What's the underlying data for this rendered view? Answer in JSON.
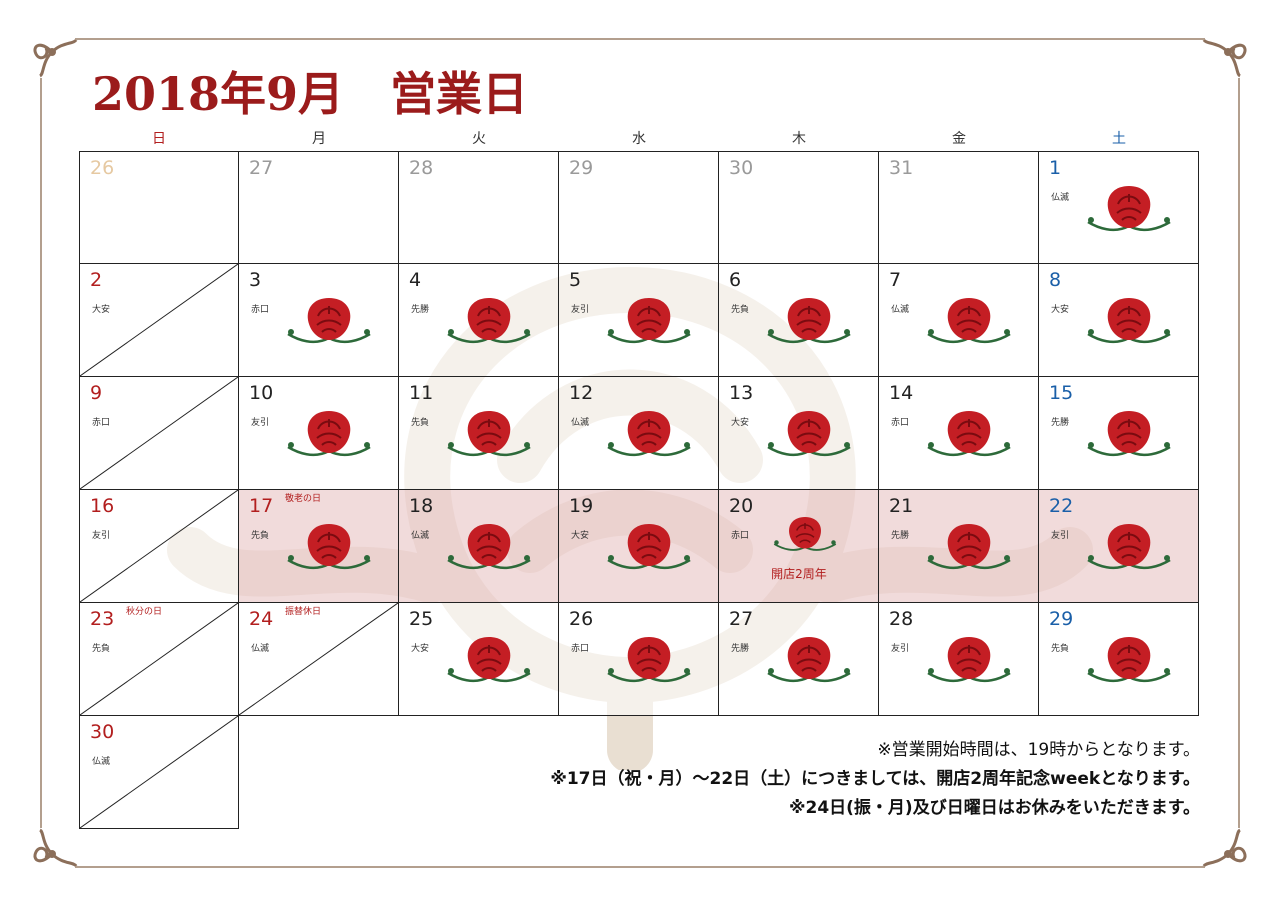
{
  "title": "2018年9月　営業日",
  "weekdays": [
    {
      "label": "日",
      "color": "#b21e1e"
    },
    {
      "label": "月",
      "color": "#333333"
    },
    {
      "label": "火",
      "color": "#333333"
    },
    {
      "label": "水",
      "color": "#333333"
    },
    {
      "label": "木",
      "color": "#333333"
    },
    {
      "label": "金",
      "color": "#333333"
    },
    {
      "label": "土",
      "color": "#1a5fa8"
    }
  ],
  "colors": {
    "sunday": "#b21e1e",
    "saturday": "#1a5fa8",
    "weekday": "#222222",
    "prev_month": "#9a9a9a",
    "prev_sunday": "#e6c9a2",
    "highlight": "#ecd0d0"
  },
  "weeks": [
    [
      {
        "day": "26",
        "state": "prev-sunday"
      },
      {
        "day": "27",
        "state": "prev"
      },
      {
        "day": "28",
        "state": "prev"
      },
      {
        "day": "29",
        "state": "prev"
      },
      {
        "day": "30",
        "state": "prev"
      },
      {
        "day": "31",
        "state": "prev"
      },
      {
        "day": "1",
        "rokuyo": "仏滅",
        "open": true,
        "dow": "sat"
      }
    ],
    [
      {
        "day": "2",
        "rokuyo": "大安",
        "closed": true,
        "dow": "sun"
      },
      {
        "day": "3",
        "rokuyo": "赤口",
        "open": true
      },
      {
        "day": "4",
        "rokuyo": "先勝",
        "open": true
      },
      {
        "day": "5",
        "rokuyo": "友引",
        "open": true
      },
      {
        "day": "6",
        "rokuyo": "先負",
        "open": true
      },
      {
        "day": "7",
        "rokuyo": "仏滅",
        "open": true
      },
      {
        "day": "8",
        "rokuyo": "大安",
        "open": true,
        "dow": "sat"
      }
    ],
    [
      {
        "day": "9",
        "rokuyo": "赤口",
        "closed": true,
        "dow": "sun"
      },
      {
        "day": "10",
        "rokuyo": "友引",
        "open": true
      },
      {
        "day": "11",
        "rokuyo": "先負",
        "open": true
      },
      {
        "day": "12",
        "rokuyo": "仏滅",
        "open": true
      },
      {
        "day": "13",
        "rokuyo": "大安",
        "open": true
      },
      {
        "day": "14",
        "rokuyo": "赤口",
        "open": true
      },
      {
        "day": "15",
        "rokuyo": "先勝",
        "open": true,
        "dow": "sat"
      }
    ],
    [
      {
        "day": "16",
        "rokuyo": "友引",
        "closed": true,
        "dow": "sun"
      },
      {
        "day": "17",
        "rokuyo": "先負",
        "open": true,
        "holiday": "敬老の日",
        "dow": "holiday",
        "highlight": true
      },
      {
        "day": "18",
        "rokuyo": "仏滅",
        "open": true,
        "highlight": true
      },
      {
        "day": "19",
        "rokuyo": "大安",
        "open": true,
        "highlight": true
      },
      {
        "day": "20",
        "rokuyo": "赤口",
        "open": true,
        "highlight": true,
        "event": "開店2周年",
        "small": true
      },
      {
        "day": "21",
        "rokuyo": "先勝",
        "open": true,
        "highlight": true
      },
      {
        "day": "22",
        "rokuyo": "友引",
        "open": true,
        "highlight": true,
        "dow": "sat"
      }
    ],
    [
      {
        "day": "23",
        "rokuyo": "先負",
        "closed": true,
        "holiday": "秋分の日",
        "dow": "sun"
      },
      {
        "day": "24",
        "rokuyo": "仏滅",
        "closed": true,
        "holiday": "振替休日",
        "dow": "holiday"
      },
      {
        "day": "25",
        "rokuyo": "大安",
        "open": true
      },
      {
        "day": "26",
        "rokuyo": "赤口",
        "open": true
      },
      {
        "day": "27",
        "rokuyo": "先勝",
        "open": true
      },
      {
        "day": "28",
        "rokuyo": "友引",
        "open": true
      },
      {
        "day": "29",
        "rokuyo": "先負",
        "open": true,
        "dow": "sat"
      }
    ],
    [
      {
        "day": "30",
        "rokuyo": "仏滅",
        "closed": true,
        "dow": "sun"
      }
    ]
  ],
  "notes": [
    "※営業開始時間は、19時からとなります。",
    "※17日（祝・月）～22日（土）につきましては、開店2周年記念weekとなります。",
    "※24日(振・月)及び日曜日はお休みをいただきます。"
  ]
}
